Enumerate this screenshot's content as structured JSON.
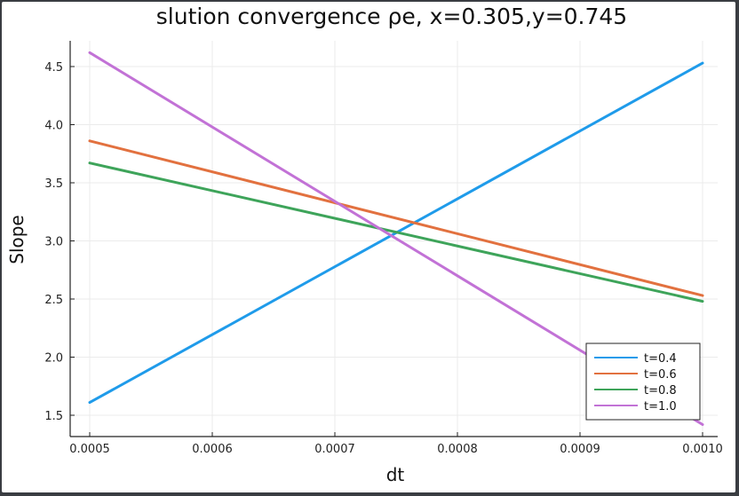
{
  "chart_data": {
    "type": "line",
    "title": "slution convergence ρe, x=0.305,y=0.745",
    "xlabel": "dt",
    "ylabel": "Slope",
    "x": [
      0.0005,
      0.001
    ],
    "xlim": [
      0.0005,
      0.001
    ],
    "ylim": [
      1.5,
      4.5
    ],
    "xticks": [
      "0.0005",
      "0.0006",
      "0.0007",
      "0.0008",
      "0.0009",
      "0.0010"
    ],
    "xtick_values": [
      0.0005,
      0.0006,
      0.0007,
      0.0008,
      0.0009,
      0.001
    ],
    "yticks": [
      "1.5",
      "2.0",
      "2.5",
      "3.0",
      "3.5",
      "4.0",
      "4.5"
    ],
    "ytick_values": [
      1.5,
      2.0,
      2.5,
      3.0,
      3.5,
      4.0,
      4.5
    ],
    "grid": true,
    "legend_position": "bottom-right",
    "series": [
      {
        "name": "t=0.4",
        "color": "#1f9bea",
        "values": [
          1.61,
          4.53
        ]
      },
      {
        "name": "t=0.6",
        "color": "#e2713f",
        "values": [
          3.86,
          2.53
        ]
      },
      {
        "name": "t=0.8",
        "color": "#3ea45a",
        "values": [
          3.67,
          2.48
        ]
      },
      {
        "name": "t=1.0",
        "color": "#c272d6",
        "values": [
          4.62,
          1.42
        ]
      }
    ]
  }
}
